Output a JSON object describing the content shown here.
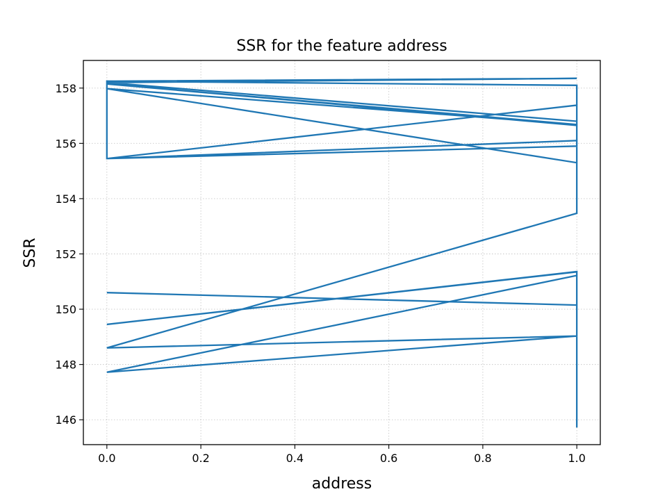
{
  "chart_data": {
    "type": "line",
    "title": "SSR for the feature address",
    "xlabel": "address",
    "ylabel": "SSR",
    "xlim": [
      -0.05,
      1.05
    ],
    "ylim": [
      145.1,
      159.0
    ],
    "xticks": [
      0.0,
      0.2,
      0.4,
      0.6,
      0.8,
      1.0
    ],
    "xtick_labels": [
      "0.0",
      "0.2",
      "0.4",
      "0.6",
      "0.8",
      "1.0"
    ],
    "yticks": [
      146,
      148,
      150,
      152,
      154,
      156,
      158
    ],
    "ytick_labels": [
      "146",
      "148",
      "150",
      "152",
      "154",
      "156",
      "158"
    ],
    "grid": true,
    "line_color": "#1f77b4",
    "series": [
      {
        "x": [
          0,
          1,
          0,
          1,
          1,
          0,
          1,
          0,
          1,
          1,
          0,
          1,
          1,
          0,
          0,
          1,
          1,
          0,
          1,
          1,
          0,
          1,
          1,
          0,
          1,
          1,
          0,
          1,
          1,
          1,
          1
        ],
        "y": [
          158.25,
          158.35,
          158.2,
          156.8,
          156.65,
          158.15,
          156.68,
          157.98,
          155.3,
          157.38,
          155.45,
          156.1,
          155.9,
          155.45,
          158.25,
          158.1,
          153.47,
          148.6,
          149.03,
          151.36,
          149.45,
          151.35,
          150.15,
          150.6,
          150.15,
          151.22,
          147.72,
          149.03,
          149.7,
          146.15,
          145.72
        ]
      }
    ]
  }
}
